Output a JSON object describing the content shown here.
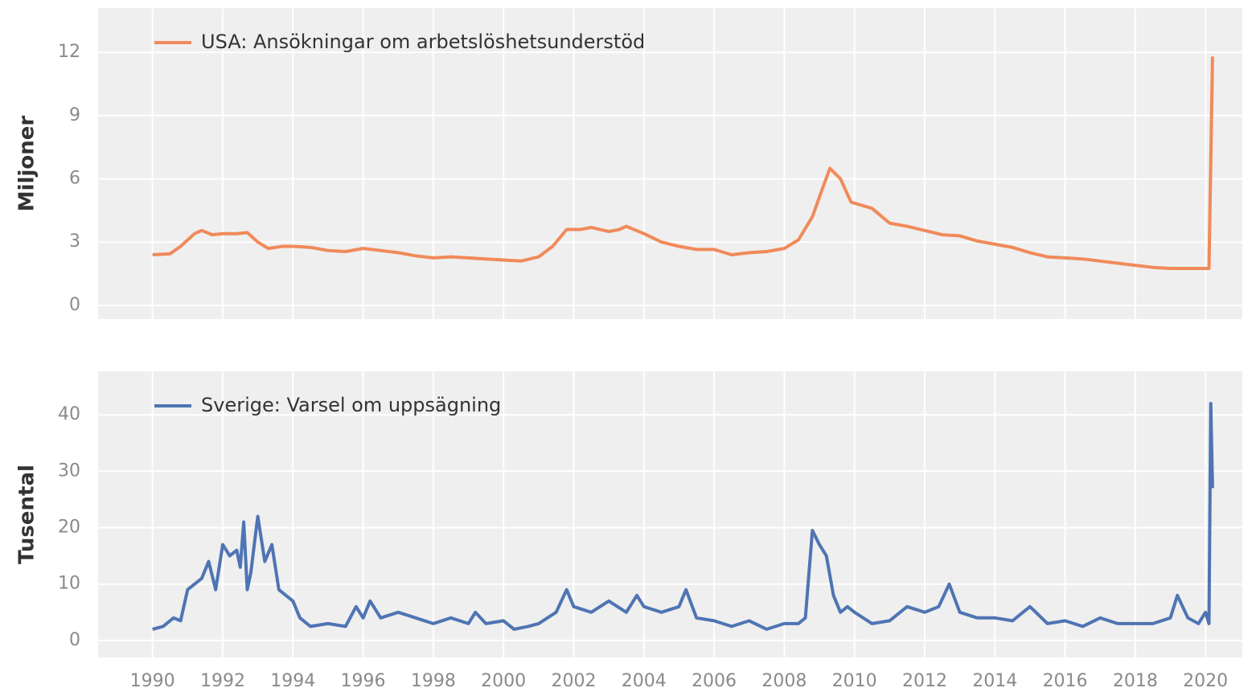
{
  "chart_data": [
    {
      "type": "line",
      "ylabel": "Miljoner",
      "legend": "upper left",
      "grid": true,
      "xlim": [
        1988.45,
        2021.05
      ],
      "ylim": [
        -0.65,
        14.1
      ],
      "xticks": [
        1990,
        1992,
        1994,
        1996,
        1998,
        2000,
        2002,
        2004,
        2006,
        2008,
        2010,
        2012,
        2014,
        2016,
        2018,
        2020
      ],
      "yticks": [
        0,
        3,
        6,
        9,
        12
      ],
      "x": [
        1990,
        1990.5,
        1990.8,
        1991.2,
        1991.4,
        1991.7,
        1992,
        1992.4,
        1992.7,
        1993,
        1993.3,
        1993.7,
        1994,
        1994.5,
        1995,
        1995.5,
        1996,
        1996.5,
        1997,
        1997.5,
        1998,
        1998.5,
        1999,
        1999.5,
        2000,
        2000.5,
        2001,
        2001.4,
        2001.8,
        2002.2,
        2002.5,
        2003,
        2003.3,
        2003.5,
        2004,
        2004.5,
        2005,
        2005.5,
        2006,
        2006.5,
        2007,
        2007.5,
        2008,
        2008.4,
        2008.8,
        2009.1,
        2009.3,
        2009.6,
        2009.9,
        2010.5,
        2011,
        2011.5,
        2012,
        2012.5,
        2013,
        2013.5,
        2014,
        2014.5,
        2015,
        2015.5,
        2016,
        2016.5,
        2017,
        2017.5,
        2018,
        2018.5,
        2019,
        2019.5,
        2020.1,
        2020.2
      ],
      "series": [
        {
          "name": "USA: Ansökningar om arbetslöshetsunderstöd",
          "color": "#f08a5a",
          "values": [
            2.4,
            2.45,
            2.8,
            3.4,
            3.55,
            3.35,
            3.4,
            3.4,
            3.45,
            3.0,
            2.7,
            2.8,
            2.8,
            2.75,
            2.6,
            2.55,
            2.7,
            2.6,
            2.5,
            2.35,
            2.25,
            2.3,
            2.25,
            2.2,
            2.15,
            2.1,
            2.3,
            2.8,
            3.6,
            3.6,
            3.7,
            3.5,
            3.6,
            3.75,
            3.4,
            3.0,
            2.8,
            2.65,
            2.65,
            2.4,
            2.5,
            2.55,
            2.7,
            3.1,
            4.2,
            5.6,
            6.5,
            6.0,
            4.9,
            4.6,
            3.9,
            3.75,
            3.55,
            3.35,
            3.3,
            3.05,
            2.9,
            2.75,
            2.5,
            2.3,
            2.25,
            2.2,
            2.1,
            2.0,
            1.9,
            1.8,
            1.75,
            1.75,
            1.75,
            11.8
          ]
        }
      ]
    },
    {
      "type": "line",
      "ylabel": "Tusental",
      "legend": "upper left",
      "grid": true,
      "xlim": [
        1988.45,
        2021.05
      ],
      "ylim": [
        -3,
        47.7
      ],
      "xticks": [
        1990,
        1992,
        1994,
        1996,
        1998,
        2000,
        2002,
        2004,
        2006,
        2008,
        2010,
        2012,
        2014,
        2016,
        2018,
        2020
      ],
      "yticks": [
        0,
        10,
        20,
        30,
        40
      ],
      "x": [
        1990,
        1990.3,
        1990.6,
        1990.8,
        1991,
        1991.2,
        1991.4,
        1991.6,
        1991.8,
        1992,
        1992.2,
        1992.4,
        1992.5,
        1992.6,
        1992.7,
        1992.8,
        1992.9,
        1993,
        1993.2,
        1993.4,
        1993.6,
        1993.8,
        1994,
        1994.2,
        1994.5,
        1995,
        1995.5,
        1995.8,
        1996,
        1996.2,
        1996.5,
        1997,
        1997.5,
        1998,
        1998.5,
        1999,
        1999.2,
        1999.5,
        2000,
        2000.3,
        2000.7,
        2001,
        2001.5,
        2001.8,
        2002,
        2002.5,
        2003,
        2003.5,
        2003.8,
        2004,
        2004.5,
        2005,
        2005.2,
        2005.5,
        2006,
        2006.5,
        2007,
        2007.5,
        2008,
        2008.4,
        2008.6,
        2008.8,
        2009,
        2009.2,
        2009.4,
        2009.6,
        2009.8,
        2010,
        2010.5,
        2011,
        2011.5,
        2012,
        2012.4,
        2012.7,
        2013,
        2013.5,
        2014,
        2014.5,
        2015,
        2015.5,
        2016,
        2016.5,
        2017,
        2017.5,
        2018,
        2018.5,
        2019,
        2019.2,
        2019.5,
        2019.8,
        2020,
        2020.1,
        2020.15,
        2020.2
      ],
      "series": [
        {
          "name": "Sverige: Varsel om uppsägning",
          "color": "#4f74b3",
          "values": [
            2,
            2.5,
            4,
            3.5,
            9,
            10,
            11,
            14,
            9,
            17,
            15,
            16,
            13,
            21,
            9,
            12,
            17,
            22,
            14,
            17,
            9,
            8,
            7,
            4,
            2.5,
            3,
            2.5,
            6,
            4,
            7,
            4,
            5,
            4,
            3,
            4,
            3,
            5,
            3,
            3.5,
            2,
            2.5,
            3,
            5,
            9,
            6,
            5,
            7,
            5,
            8,
            6,
            5,
            6,
            9,
            4,
            3.5,
            2.5,
            3.5,
            2,
            3,
            3,
            4,
            19.5,
            17,
            15,
            8,
            5,
            6,
            5,
            3,
            3.5,
            6,
            5,
            6,
            10,
            5,
            4,
            4,
            3.5,
            6,
            3,
            3.5,
            2.5,
            4,
            3,
            3,
            3,
            4,
            8,
            4,
            3,
            5,
            3,
            42,
            27
          ]
        }
      ]
    }
  ]
}
